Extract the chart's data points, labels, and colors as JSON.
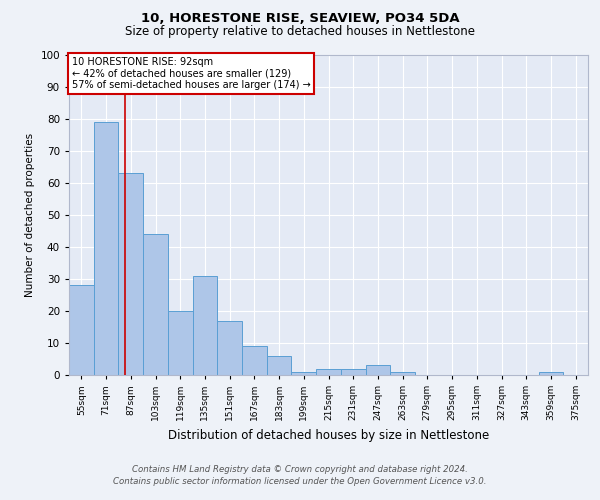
{
  "title1": "10, HORESTONE RISE, SEAVIEW, PO34 5DA",
  "title2": "Size of property relative to detached houses in Nettlestone",
  "xlabel": "Distribution of detached houses by size in Nettlestone",
  "ylabel": "Number of detached properties",
  "bin_labels": [
    "55sqm",
    "71sqm",
    "87sqm",
    "103sqm",
    "119sqm",
    "135sqm",
    "151sqm",
    "167sqm",
    "183sqm",
    "199sqm",
    "215sqm",
    "231sqm",
    "247sqm",
    "263sqm",
    "279sqm",
    "295sqm",
    "311sqm",
    "327sqm",
    "343sqm",
    "359sqm",
    "375sqm"
  ],
  "bar_values": [
    28,
    79,
    63,
    44,
    20,
    31,
    17,
    9,
    6,
    1,
    2,
    2,
    3,
    1,
    0,
    0,
    0,
    0,
    0,
    1,
    0
  ],
  "bar_color": "#aec6e8",
  "bar_edge_color": "#5a9fd4",
  "vline_x_index": 2,
  "vline_color": "#cc0000",
  "annotation_text": "10 HORESTONE RISE: 92sqm\n← 42% of detached houses are smaller (129)\n57% of semi-detached houses are larger (174) →",
  "annotation_box_color": "#ffffff",
  "annotation_box_edge": "#cc0000",
  "ylim": [
    0,
    100
  ],
  "yticks": [
    0,
    10,
    20,
    30,
    40,
    50,
    60,
    70,
    80,
    90,
    100
  ],
  "footer1": "Contains HM Land Registry data © Crown copyright and database right 2024.",
  "footer2": "Contains public sector information licensed under the Open Government Licence v3.0.",
  "bg_color": "#eef2f8",
  "plot_bg_color": "#e4eaf5"
}
